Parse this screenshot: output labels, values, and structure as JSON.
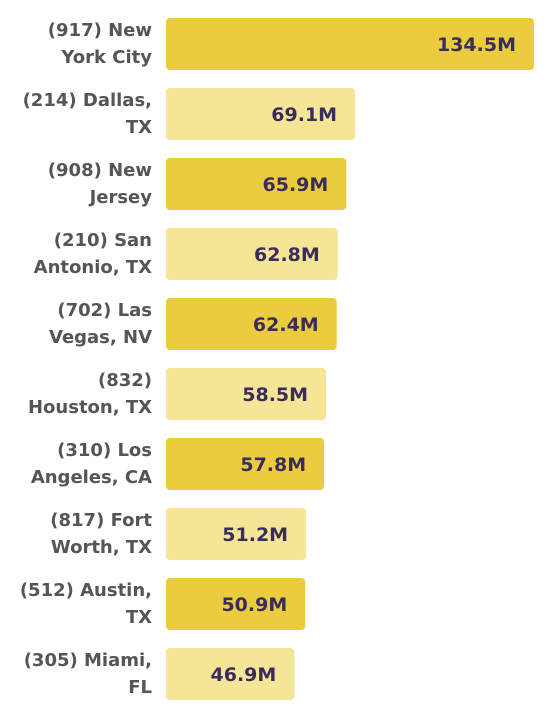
{
  "chart_data": {
    "type": "bar",
    "orientation": "horizontal",
    "categories": [
      [
        "(917) New",
        "York City"
      ],
      [
        "(214) Dallas,",
        "TX"
      ],
      [
        "(908) New",
        "Jersey"
      ],
      [
        "(210) San",
        "Antonio, TX"
      ],
      [
        "(702) Las",
        "Vegas, NV"
      ],
      [
        "(832)",
        "Houston, TX"
      ],
      [
        "(310) Los",
        "Angeles, CA"
      ],
      [
        "(817) Fort",
        "Worth, TX"
      ],
      [
        "(512) Austin,",
        "TX"
      ],
      [
        "(305) Miami,",
        "FL"
      ]
    ],
    "values": [
      134.5,
      69.1,
      65.9,
      62.8,
      62.4,
      58.5,
      57.8,
      51.2,
      50.9,
      46.9
    ],
    "value_labels": [
      "134.5M",
      "69.1M",
      "65.9M",
      "62.8M",
      "62.4M",
      "58.5M",
      "57.8M",
      "51.2M",
      "50.9M",
      "46.9M"
    ],
    "unit": "M",
    "xlim": [
      0,
      134.5
    ],
    "grid": false,
    "legend": "none",
    "colors": {
      "bar_strong": "#eccc3f",
      "bar_light": "#f5e596",
      "value_text": "#3a2d5c",
      "category_text": "#555555"
    }
  }
}
